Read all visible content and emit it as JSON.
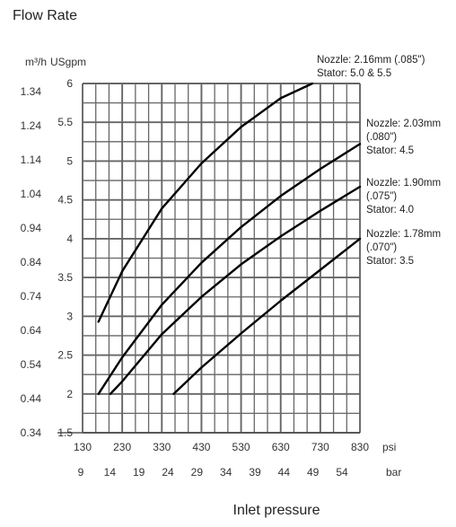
{
  "chart_data": {
    "type": "line",
    "title": "Flow Rate",
    "xlabel": "Inlet pressure",
    "x_unit_primary": "psi",
    "x_unit_secondary": "bar",
    "y_unit_primary": "USgpm",
    "y_unit_secondary": "m³/h",
    "xlim": [
      130,
      830
    ],
    "ylim": [
      1.5,
      6
    ],
    "x_ticks_psi": [
      "130",
      "230",
      "330",
      "430",
      "530",
      "630",
      "730",
      "830"
    ],
    "x_ticks_bar": [
      "9",
      "14",
      "19",
      "24",
      "29",
      "34",
      "39",
      "44",
      "49",
      "54"
    ],
    "y_ticks_usgpm": [
      "1.5",
      "2",
      "2.5",
      "3",
      "3.5",
      "4",
      "4.5",
      "5",
      "5.5",
      "6"
    ],
    "y_ticks_m3h": [
      "0.34",
      "0.44",
      "0.54",
      "0.64",
      "0.74",
      "0.84",
      "0.94",
      "1.04",
      "1.14",
      "1.24",
      "1.34"
    ],
    "grid": true,
    "series": [
      {
        "label_lines": [
          "Nozzle: 2.16mm (.085\")",
          "Stator: 5.0  & 5.5"
        ],
        "x": [
          170,
          230,
          330,
          430,
          530,
          630,
          710
        ],
        "y": [
          2.93,
          3.58,
          4.39,
          4.97,
          5.44,
          5.81,
          6.0
        ]
      },
      {
        "label_lines": [
          "Nozzle: 2.03mm",
          "(.080\")",
          "Stator: 4.5"
        ],
        "x": [
          170,
          230,
          330,
          430,
          530,
          630,
          730,
          830
        ],
        "y": [
          2.0,
          2.47,
          3.15,
          3.69,
          4.15,
          4.55,
          4.9,
          5.22
        ]
      },
      {
        "label_lines": [
          "Nozzle: 1.90mm",
          "(.075\")",
          "Stator: 4.0"
        ],
        "x": [
          200,
          230,
          330,
          430,
          530,
          630,
          730,
          830
        ],
        "y": [
          2.0,
          2.16,
          2.77,
          3.25,
          3.67,
          4.03,
          4.36,
          4.67
        ]
      },
      {
        "label_lines": [
          "Nozzle: 1.78mm",
          "(.070\")",
          "Stator: 3.5"
        ],
        "x": [
          360,
          430,
          530,
          630,
          730,
          830
        ],
        "y": [
          2.0,
          2.34,
          2.78,
          3.2,
          3.6,
          4.0
        ]
      }
    ]
  }
}
